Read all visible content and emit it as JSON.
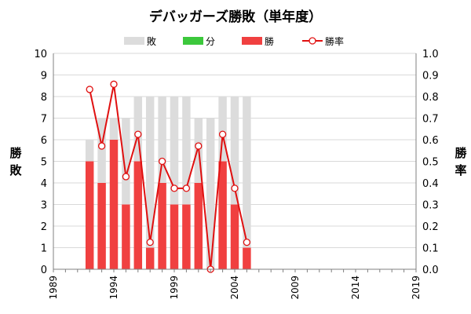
{
  "chart_data": {
    "type": "bar",
    "title": "デバッガーズ勝敗（単年度）",
    "legend": {
      "placement": "top",
      "entries": [
        {
          "key": "loss",
          "label": "敗"
        },
        {
          "key": "draw",
          "label": "分"
        },
        {
          "key": "win",
          "label": "勝"
        },
        {
          "key": "rate",
          "label": "勝率"
        }
      ]
    },
    "ylabel_left": "勝敗",
    "ylabel_right": "勝率",
    "ylim_left": [
      0,
      10
    ],
    "ylim_right": [
      0,
      1.0
    ],
    "yticks_left": [
      "0",
      "1",
      "2",
      "3",
      "4",
      "5",
      "6",
      "7",
      "8",
      "9",
      "10"
    ],
    "yticks_right": [
      "0.0",
      "0.1",
      "0.2",
      "0.3",
      "0.4",
      "0.5",
      "0.6",
      "0.7",
      "0.8",
      "0.9",
      "1.0"
    ],
    "xlim": [
      1989,
      2019
    ],
    "xticks": [
      "1989",
      "1994",
      "1999",
      "2004",
      "2009",
      "2014",
      "2019"
    ],
    "grid": "horizontal",
    "x": [
      1992,
      1993,
      1994,
      1995,
      1996,
      1997,
      1998,
      1999,
      2000,
      2001,
      2002,
      2003,
      2004,
      2005
    ],
    "series": [
      {
        "name": "勝",
        "key": "win",
        "stack": true,
        "values": [
          5,
          4,
          6,
          3,
          5,
          1,
          4,
          3,
          3,
          4,
          0,
          5,
          3,
          1
        ]
      },
      {
        "name": "分",
        "key": "draw",
        "stack": true,
        "values": [
          0,
          0,
          0,
          0,
          0,
          0,
          0,
          0,
          0,
          0,
          0,
          0,
          0,
          0
        ]
      },
      {
        "name": "敗",
        "key": "loss",
        "stack": true,
        "values": [
          1,
          3,
          1,
          4,
          3,
          7,
          4,
          5,
          5,
          3,
          7,
          3,
          5,
          7
        ]
      },
      {
        "name": "勝率",
        "key": "rate",
        "axis": "right",
        "type": "line",
        "values": [
          0.833,
          0.571,
          0.857,
          0.429,
          0.625,
          0.125,
          0.5,
          0.375,
          0.375,
          0.571,
          0.0,
          0.625,
          0.375,
          0.125
        ]
      }
    ],
    "colors": {
      "win": "#f04040",
      "draw": "#3cc83c",
      "loss": "#dcdcdc",
      "rate_line": "#e01010",
      "rate_marker_fill": "#ffffff"
    }
  }
}
